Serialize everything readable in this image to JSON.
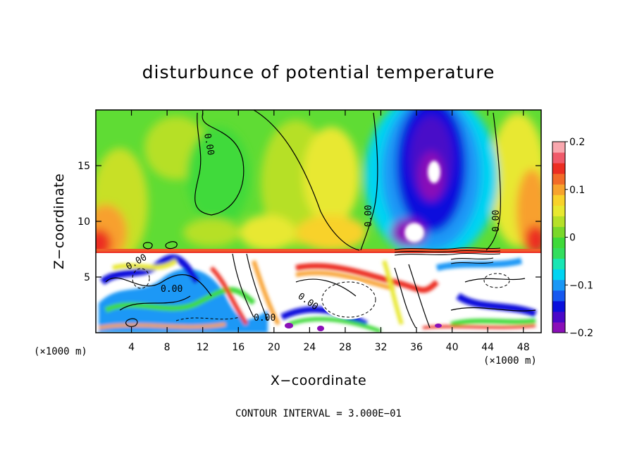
{
  "chart_data": {
    "type": "heatmap",
    "title": "disturbunce of potential temperature",
    "xlabel": "X−coordinate",
    "ylabel": "Z−coordinate",
    "x_unit_label": "(×1000 m)",
    "x_unit_label_right": "(×1000 m)",
    "xlim": [
      0,
      50
    ],
    "ylim": [
      0,
      20
    ],
    "x_ticks": [
      4,
      8,
      12,
      16,
      20,
      24,
      28,
      32,
      36,
      40,
      44,
      48
    ],
    "y_ticks": [
      5,
      10,
      15
    ],
    "grid": false,
    "colorbar": {
      "range": [
        -0.2,
        0.2
      ],
      "ticks": [
        {
          "value": 0.2,
          "label": "0.2"
        },
        {
          "value": 0.1,
          "label": "0.1"
        },
        {
          "value": 0,
          "label": "0"
        },
        {
          "value": -0.1,
          "label": "−0.1"
        },
        {
          "value": -0.2,
          "label": "−0.2"
        }
      ],
      "colors": [
        "#8a0fb8",
        "#4a08c8",
        "#0a10dc",
        "#1658f0",
        "#1a98f6",
        "#00d4f2",
        "#18e6b4",
        "#33de5e",
        "#3fda3a",
        "#7ad82a",
        "#b6e028",
        "#e8e830",
        "#f8d22a",
        "#f7a32d",
        "#f26b28",
        "#ec2e22",
        "#f05a6a",
        "#f9a7ae"
      ]
    },
    "contour_labels": [
      "0.00",
      "0.00",
      "0.00",
      "0.00",
      "0.00",
      "0.00",
      "0.00"
    ],
    "annotation": "CONTOUR INTERVAL = 3.000E−01"
  }
}
